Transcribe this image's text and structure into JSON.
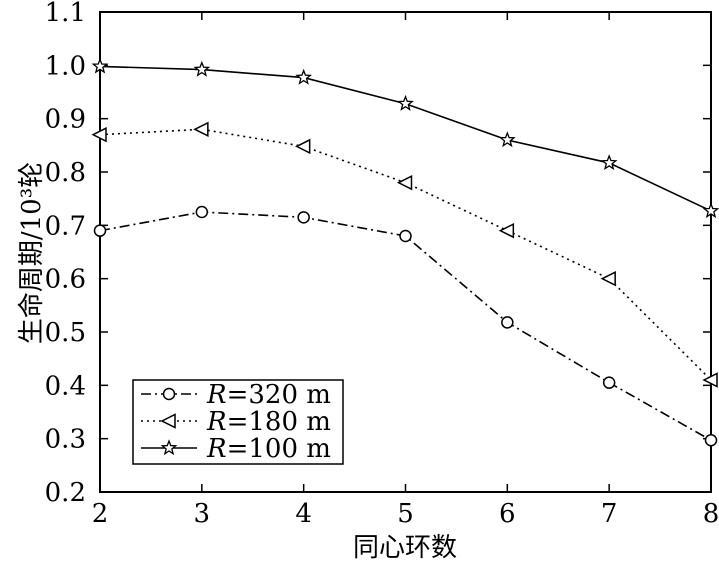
{
  "chart_data": {
    "type": "line",
    "xlabel": "同心环数",
    "ylabel": "生命周期/10³轮",
    "x": [
      2,
      3,
      4,
      5,
      6,
      7,
      8
    ],
    "xlim": [
      2,
      8
    ],
    "ylim": [
      0.2,
      1.1
    ],
    "x_ticks": [
      "2",
      "3",
      "4",
      "5",
      "6",
      "7",
      "8"
    ],
    "y_ticks": [
      "0.2",
      "0.3",
      "0.4",
      "0.5",
      "0.6",
      "0.7",
      "0.8",
      "0.9",
      "1.0",
      "1.1"
    ],
    "grid": false,
    "legend_position": "bottom-left",
    "series": [
      {
        "name": "R=320 m",
        "legend_italic": "R",
        "legend_rest": "=320 m",
        "marker": "circle",
        "line_style": "dash-dot",
        "values": [
          0.69,
          0.725,
          0.715,
          0.68,
          0.518,
          0.405,
          0.297
        ]
      },
      {
        "name": "R=180 m",
        "legend_italic": "R",
        "legend_rest": "=180 m",
        "marker": "left-triangle",
        "line_style": "dotted",
        "values": [
          0.87,
          0.88,
          0.848,
          0.78,
          0.69,
          0.6,
          0.41
        ]
      },
      {
        "name": "R=100 m",
        "legend_italic": "R",
        "legend_rest": "=100 m",
        "marker": "star",
        "line_style": "solid",
        "values": [
          0.998,
          0.992,
          0.977,
          0.928,
          0.86,
          0.817,
          0.727
        ]
      }
    ]
  }
}
